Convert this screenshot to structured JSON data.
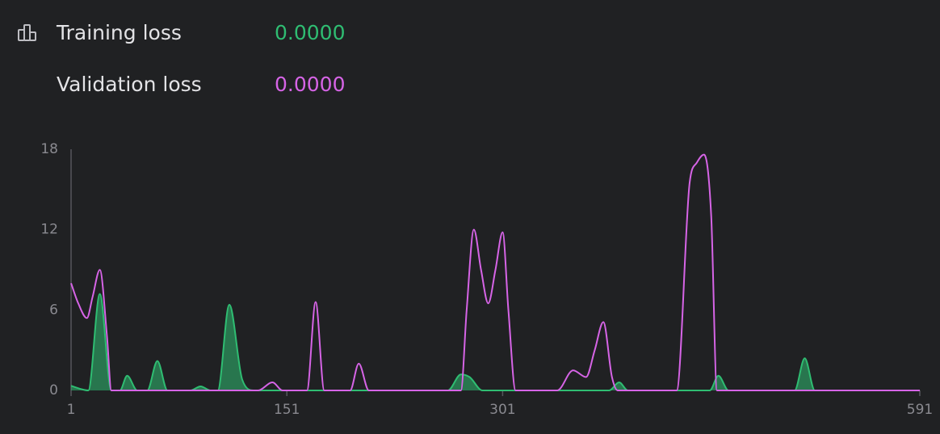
{
  "chart_data": {
    "type": "area-line",
    "xlim": [
      1,
      591
    ],
    "xticks": [
      1,
      151,
      301,
      591
    ],
    "ylim": [
      0,
      18
    ],
    "yticks": [
      0,
      6,
      12,
      18
    ],
    "series": [
      {
        "name": "Training loss",
        "color": "#2fbd72",
        "fill": true,
        "final_value_label": "0.0000",
        "x": [
          1,
          8,
          13,
          21,
          29,
          35,
          40,
          47,
          54,
          61,
          68,
          84,
          91,
          98,
          103,
          111,
          120,
          128,
          263,
          272,
          278,
          287,
          375,
          382,
          388,
          445,
          451,
          458,
          504,
          511,
          518,
          591
        ],
        "values": [
          0.35,
          0.1,
          0,
          7.2,
          0,
          0,
          1.1,
          0,
          0,
          2.2,
          0,
          0,
          0.3,
          0,
          0,
          6.4,
          0.8,
          0,
          0,
          1.2,
          1.0,
          0,
          0,
          0.6,
          0,
          0,
          1.1,
          0,
          0,
          2.4,
          0,
          0
        ]
      },
      {
        "name": "Validation loss",
        "color": "#d664e6",
        "fill": false,
        "final_value_label": "0.0000",
        "x": [
          1,
          6,
          12,
          16,
          21,
          26,
          29,
          131,
          141,
          148,
          165,
          171,
          177,
          195,
          201,
          208,
          272,
          276,
          281,
          286,
          291,
          296,
          301,
          305,
          310,
          339,
          350,
          359,
          365,
          371,
          377,
          381,
          422,
          431,
          436,
          441,
          446,
          450,
          591
        ],
        "values": [
          8.0,
          6.5,
          5.4,
          7.0,
          9.0,
          4.0,
          0,
          0,
          0.6,
          0,
          0,
          6.6,
          0,
          0,
          2.0,
          0,
          0,
          6.0,
          12.0,
          9.0,
          6.5,
          9.0,
          11.8,
          6.0,
          0,
          0,
          1.5,
          1.0,
          3.0,
          5.1,
          1.0,
          0,
          0,
          15.5,
          17.0,
          17.6,
          13.0,
          0,
          0
        ]
      }
    ]
  }
}
